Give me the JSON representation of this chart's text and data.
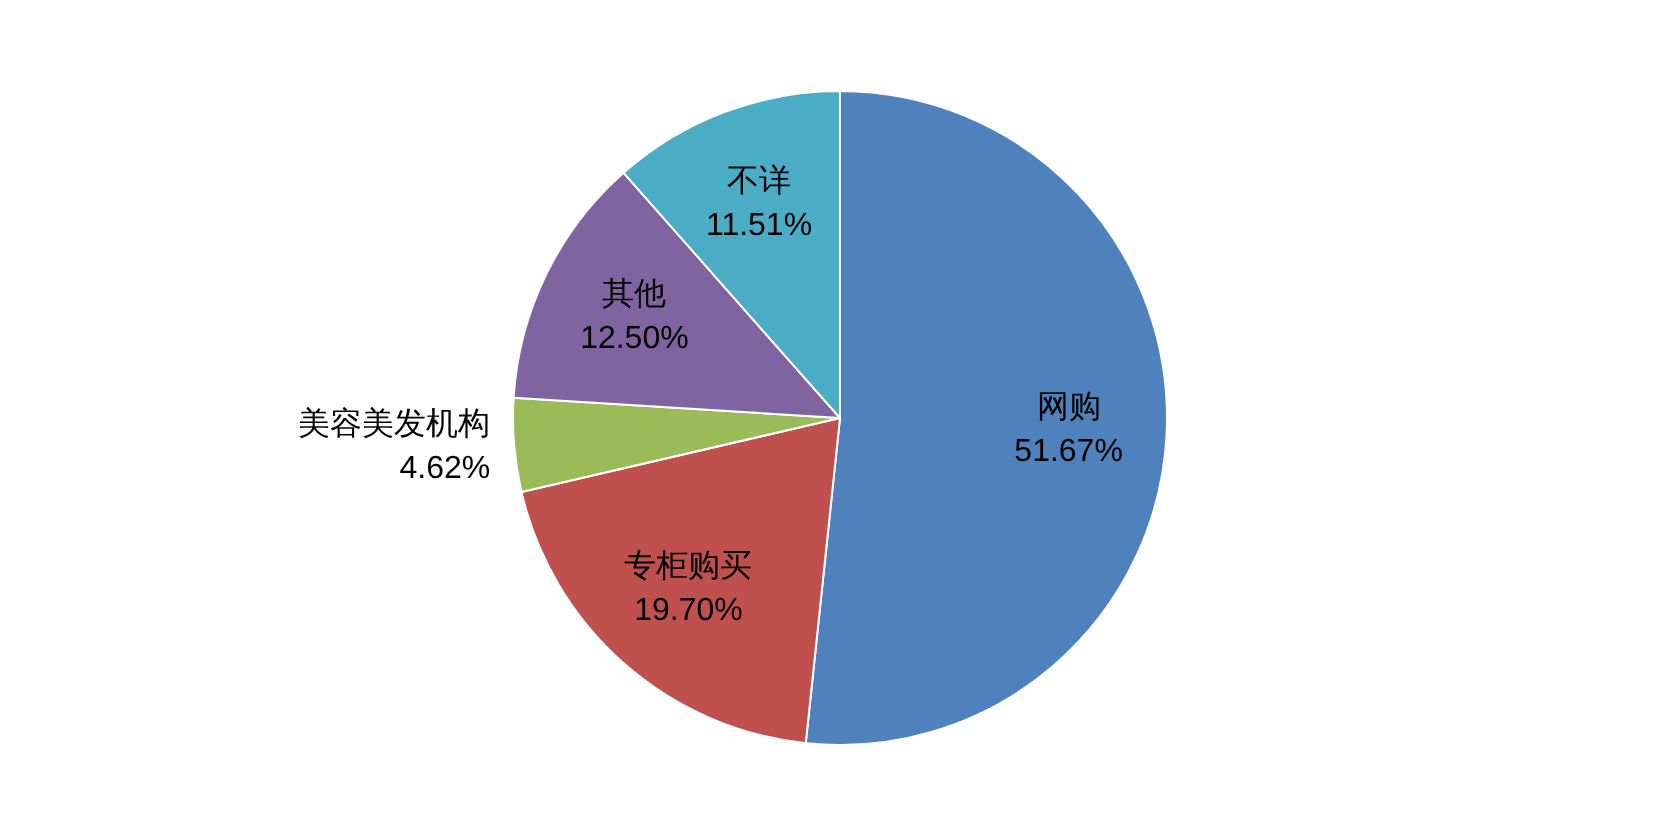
{
  "chart_data": {
    "type": "pie",
    "categories": [
      "网购",
      "专柜购买",
      "美容美发机构",
      "其他",
      "不详"
    ],
    "values": [
      51.67,
      19.7,
      4.62,
      12.5,
      11.51
    ],
    "value_labels": [
      "51.67%",
      "19.70%",
      "4.62%",
      "12.50%",
      "11.51%"
    ],
    "colors": [
      "#4f81bd",
      "#c0504d",
      "#9bbb59",
      "#8064a2",
      "#4bacc6"
    ],
    "legend": false
  }
}
